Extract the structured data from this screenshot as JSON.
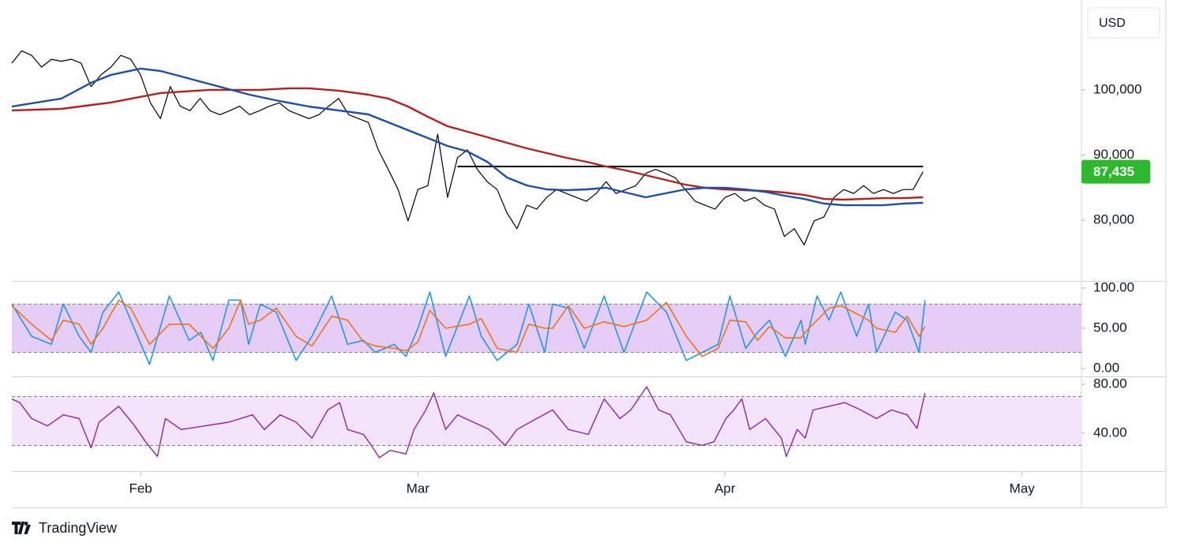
{
  "currency": "USD",
  "brand": "TradingView",
  "chart_data": [
    {
      "type": "line",
      "ylim": [
        70800,
        113800
      ],
      "xlim": [
        0,
        108
      ],
      "yticks": [
        {
          "value": 80000,
          "label": "80,000"
        },
        {
          "value": 90000,
          "label": "90,000"
        },
        {
          "value": 100000,
          "label": "100,000"
        }
      ],
      "last_price": {
        "value": 87435,
        "label": "87,435",
        "color": "#2db82d"
      },
      "level": {
        "value": 88240,
        "x": [
          45,
          92
        ],
        "color": "#000000"
      },
      "series": [
        {
          "color": "#000000",
          "width": 1.2,
          "x": [
            0,
            1,
            2,
            3,
            4,
            5,
            6,
            7,
            8,
            9,
            10,
            11,
            12,
            13,
            14,
            15,
            16,
            17,
            18,
            19,
            20,
            21,
            22,
            23,
            24,
            25,
            26,
            27,
            28,
            29,
            30,
            31,
            32,
            33,
            34,
            35,
            36,
            37,
            38,
            39,
            40,
            41,
            42,
            43,
            44,
            45,
            46,
            47,
            48,
            49,
            50,
            51,
            52,
            53,
            54,
            55,
            56,
            57,
            58,
            59,
            60,
            61,
            62,
            63,
            64,
            65,
            66,
            67,
            68,
            69,
            70,
            71,
            72,
            73,
            74,
            75,
            76,
            77,
            78,
            79,
            80,
            81,
            82,
            83,
            84,
            85,
            86,
            87,
            88,
            89,
            90,
            91,
            92
          ],
          "values": [
            104100,
            106000,
            105300,
            103500,
            104700,
            104400,
            104700,
            104100,
            100500,
            102300,
            103500,
            105300,
            104700,
            102300,
            98000,
            95600,
            100500,
            97500,
            96800,
            98700,
            96800,
            96200,
            96800,
            97500,
            96200,
            96800,
            97500,
            98000,
            96800,
            96200,
            95600,
            96200,
            97500,
            98700,
            96200,
            95600,
            95000,
            90800,
            87800,
            84700,
            79900,
            84700,
            85300,
            93200,
            83500,
            89600,
            90800,
            87800,
            85900,
            84700,
            81100,
            78700,
            82300,
            81700,
            83500,
            84700,
            84100,
            83500,
            82900,
            84100,
            85900,
            84100,
            84700,
            85300,
            87200,
            87800,
            87200,
            86500,
            84700,
            82900,
            82300,
            81700,
            83500,
            84100,
            82900,
            83500,
            82300,
            81700,
            77500,
            78700,
            76200,
            79900,
            80500,
            83500,
            84700,
            84100,
            85300,
            84100,
            84700,
            84100,
            84700,
            84700,
            87435
          ]
        },
        {
          "color": "#b22222",
          "width": 2.4,
          "x": [
            0,
            5,
            10,
            15,
            20,
            25,
            28,
            30,
            33,
            36,
            38,
            40,
            42,
            44,
            46,
            48,
            50,
            52,
            54,
            56,
            58,
            60,
            62,
            64,
            66,
            68,
            70,
            72,
            74,
            76,
            78,
            80,
            82,
            84,
            86,
            88,
            90,
            92
          ],
          "values": [
            96850,
            97090,
            98060,
            99520,
            100000,
            100000,
            100240,
            100240,
            99880,
            99270,
            98670,
            97450,
            95880,
            94420,
            93580,
            92730,
            91880,
            91030,
            90300,
            89580,
            88970,
            88240,
            87640,
            86910,
            86180,
            85460,
            84970,
            84730,
            84610,
            84490,
            84240,
            83880,
            83270,
            83150,
            83270,
            83390,
            83390,
            83520
          ]
        },
        {
          "color": "#1e4fa3",
          "width": 2.4,
          "x": [
            0,
            5,
            8,
            10,
            13,
            15,
            18,
            21,
            24,
            27,
            30,
            33,
            36,
            38,
            40,
            42,
            44,
            46,
            48,
            50,
            52,
            54,
            56,
            58,
            60,
            62,
            64,
            66,
            68,
            70,
            72,
            74,
            76,
            78,
            80,
            82,
            84,
            86,
            88,
            90,
            92
          ],
          "values": [
            97450,
            98670,
            101090,
            102300,
            103270,
            102910,
            101700,
            100480,
            99270,
            98300,
            97450,
            96850,
            96240,
            95030,
            93820,
            92610,
            91390,
            90550,
            88970,
            86550,
            85330,
            84730,
            84610,
            84730,
            84970,
            84240,
            83520,
            84120,
            84730,
            84970,
            84970,
            84730,
            84370,
            83760,
            83270,
            82550,
            82300,
            82300,
            82300,
            82550,
            82670
          ]
        }
      ]
    },
    {
      "type": "line",
      "ylim": [
        -9.8,
        107.8
      ],
      "xlim": [
        0,
        108
      ],
      "yticks": [
        {
          "value": 0,
          "label": "0.00"
        },
        {
          "value": 50,
          "label": "50.00"
        },
        {
          "value": 100,
          "label": "100.00"
        }
      ],
      "band": [
        20,
        80
      ],
      "band_color": "#e6cdf7",
      "series": [
        {
          "color": "#2196f3",
          "width": 1.6,
          "x": [
            0,
            2,
            4,
            5.2,
            6.8,
            8,
            9.2,
            10.8,
            12,
            13.9,
            15.9,
            17.9,
            19.1,
            20.3,
            21.9,
            23.1,
            23.9,
            25.1,
            26.7,
            28.7,
            30.3,
            32.3,
            33.9,
            35.5,
            36.7,
            38.6,
            39.8,
            41,
            42.2,
            43.8,
            46.2,
            47.4,
            49,
            51,
            52.2,
            53.8,
            54.6,
            56.2,
            57.8,
            59.8,
            61.8,
            64.1,
            66.1,
            68.1,
            69.7,
            71.3,
            72.5,
            74.1,
            75.3,
            76.5,
            78.1,
            79.7,
            80.1,
            81.3,
            82.5,
            83.7,
            85.3,
            86.5,
            87.3,
            89.2,
            90.4,
            91.6,
            92.2
          ],
          "values": [
            80,
            40,
            30,
            80,
            40,
            20,
            70,
            95,
            60,
            5,
            90,
            35,
            45,
            10,
            85,
            85,
            30,
            80,
            70,
            10,
            40,
            90,
            30,
            35,
            20,
            30,
            15,
            50,
            95,
            15,
            90,
            40,
            10,
            30,
            80,
            20,
            80,
            75,
            25,
            90,
            20,
            95,
            70,
            10,
            20,
            30,
            90,
            25,
            45,
            60,
            15,
            60,
            30,
            90,
            60,
            95,
            40,
            80,
            20,
            70,
            60,
            20,
            85
          ]
        },
        {
          "color": "#f0731a",
          "width": 1.6,
          "x": [
            0,
            2,
            4,
            5.2,
            6.8,
            8,
            9.2,
            10.8,
            12,
            13.9,
            15.9,
            17.9,
            19.1,
            20.3,
            21.9,
            23.1,
            23.9,
            25.1,
            26.7,
            28.7,
            30.3,
            32.3,
            33.9,
            35.5,
            36.7,
            38.6,
            39.8,
            41,
            42.2,
            43.8,
            46.2,
            47.4,
            49,
            51,
            52.2,
            53.8,
            54.6,
            56.2,
            57.8,
            59.8,
            61.8,
            64.1,
            66.1,
            68.1,
            69.7,
            71.3,
            72.5,
            74.1,
            75.3,
            76.5,
            78.1,
            79.7,
            80.1,
            81.3,
            82.5,
            83.7,
            85.3,
            86.5,
            87.3,
            89.2,
            90.4,
            91.6,
            92.2
          ],
          "values": [
            78,
            55,
            35,
            60,
            55,
            30,
            50,
            85,
            75,
            30,
            55,
            55,
            40,
            25,
            50,
            85,
            55,
            60,
            75,
            40,
            28,
            65,
            60,
            33,
            28,
            25,
            22,
            33,
            72,
            50,
            55,
            62,
            25,
            20,
            55,
            50,
            50,
            78,
            50,
            58,
            52,
            60,
            82,
            40,
            15,
            25,
            60,
            58,
            35,
            52,
            38,
            38,
            45,
            60,
            75,
            78,
            68,
            60,
            50,
            45,
            65,
            40,
            52
          ]
        }
      ]
    },
    {
      "type": "line",
      "ylim": [
        9.0,
        85.8
      ],
      "xlim": [
        0,
        108
      ],
      "yticks": [
        {
          "value": 40,
          "label": "40.00"
        },
        {
          "value": 80,
          "label": "80.00"
        }
      ],
      "xticks": [
        {
          "value": 13,
          "label": "Feb"
        },
        {
          "value": 41,
          "label": "Mar"
        },
        {
          "value": 72,
          "label": "Apr"
        },
        {
          "value": 102,
          "label": "May"
        }
      ],
      "band": [
        30,
        70
      ],
      "band_color": "#f3e3fb",
      "series": [
        {
          "color": "#8e24aa",
          "width": 1.4,
          "x": [
            0,
            0.8,
            2,
            3.6,
            5.2,
            6.8,
            8,
            8.8,
            10.8,
            12.4,
            13.5,
            14.7,
            15.5,
            17.1,
            19.5,
            21.9,
            24.3,
            25.5,
            27.1,
            28.7,
            30.3,
            31.9,
            33.1,
            33.9,
            35.5,
            36.3,
            37.1,
            38.2,
            39.8,
            40.6,
            41.8,
            42.6,
            43.8,
            45,
            46.6,
            48.2,
            49.8,
            51,
            53,
            54.6,
            56.2,
            58.2,
            59.8,
            61.4,
            62.5,
            64.1,
            65.3,
            66.5,
            68.1,
            69.7,
            70.9,
            72.1,
            72.9,
            73.7,
            74.5,
            76.1,
            77.7,
            78.2,
            79.3,
            80.1,
            80.9,
            82.5,
            84.1,
            85.7,
            87.3,
            88.8,
            90.4,
            91.4,
            92.2
          ],
          "values": [
            68,
            65,
            52,
            46,
            55,
            52,
            28,
            49,
            62,
            46,
            33,
            21,
            52,
            43,
            46,
            49,
            55,
            43,
            55,
            49,
            36,
            59,
            65,
            43,
            39,
            30,
            20,
            26,
            23,
            43,
            59,
            73,
            43,
            55,
            49,
            43,
            30,
            43,
            52,
            59,
            43,
            39,
            68,
            52,
            59,
            78,
            59,
            55,
            33,
            30,
            33,
            52,
            59,
            68,
            43,
            52,
            36,
            21,
            43,
            36,
            59,
            62,
            65,
            59,
            52,
            59,
            55,
            44,
            73
          ]
        }
      ]
    }
  ]
}
